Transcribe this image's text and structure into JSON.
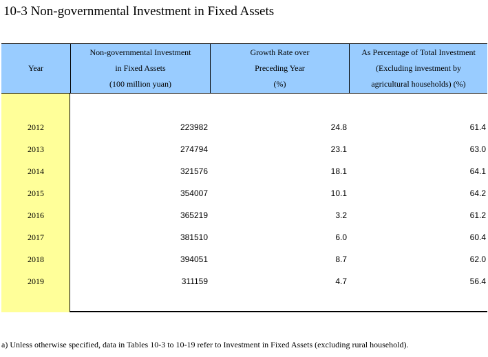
{
  "title": "10-3  Non-governmental Investment in Fixed Assets",
  "header": {
    "year": "Year",
    "col1": [
      "Non-governmental Investment",
      "in Fixed Assets",
      "(100 million yuan)"
    ],
    "col2": [
      "Growth Rate over",
      "Preceding Year",
      "(%)"
    ],
    "col3": [
      "As Percentage of Total Investment",
      "(Excluding investment by",
      "agricultural households) (%)"
    ]
  },
  "rows": [
    {
      "year": "2012",
      "investment": "223982",
      "growth": "24.8",
      "percentage": "61.4"
    },
    {
      "year": "2013",
      "investment": "274794",
      "growth": "23.1",
      "percentage": "63.0"
    },
    {
      "year": "2014",
      "investment": "321576",
      "growth": "18.1",
      "percentage": "64.1"
    },
    {
      "year": "2015",
      "investment": "354007",
      "growth": "10.1",
      "percentage": "64.2"
    },
    {
      "year": "2016",
      "investment": "365219",
      "growth": "3.2",
      "percentage": "61.2"
    },
    {
      "year": "2017",
      "investment": "381510",
      "growth": "6.0",
      "percentage": "60.4"
    },
    {
      "year": "2018",
      "investment": "394051",
      "growth": "8.7",
      "percentage": "62.0"
    },
    {
      "year": "2019",
      "investment": "311159",
      "growth": "4.7",
      "percentage": "56.4"
    }
  ],
  "footnote": "a) Unless otherwise specified, data in Tables 10-3 to 10-19 refer to Investment in Fixed Assets (excluding rural household).",
  "colors": {
    "header_bg": "#99ccff",
    "year_col_bg": "#ffff99"
  }
}
